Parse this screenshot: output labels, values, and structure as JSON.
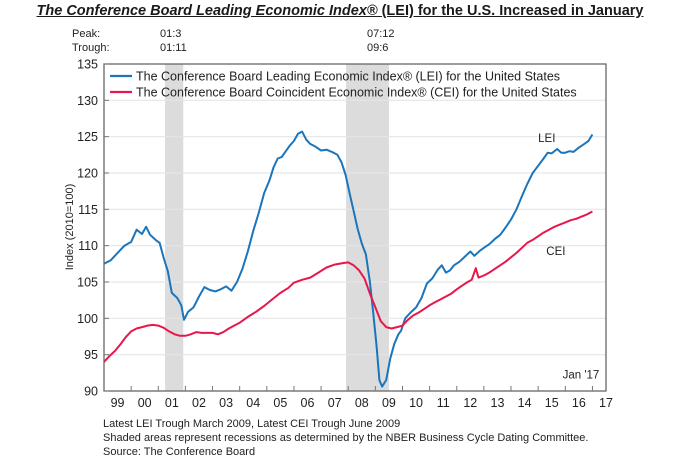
{
  "title_italic": "The Conference Board Leading Economic Index®",
  "title_rest": " (LEI) for the U.S. Increased in January",
  "turning_points": {
    "peak_label": "Peak:",
    "trough_label": "Trough:",
    "peaks": [
      "01:3",
      "07:12"
    ],
    "troughs": [
      "01:11",
      "09:6"
    ]
  },
  "footnotes": [
    "Latest LEI Trough March 2009, Latest CEI Trough June 2009",
    "Shaded areas represent recessions as determined by the NBER Business Cycle Dating Committee.",
    "Source: The Conference Board"
  ],
  "chart_data": {
    "type": "line",
    "title": "The Conference Board Leading Economic Index® (LEI) for the U.S. Increased in January",
    "xlabel": "",
    "ylabel": "Index (2010=100)",
    "xlim": [
      1999.0,
      2017.5
    ],
    "ylim": [
      90,
      135
    ],
    "yticks": [
      90,
      95,
      100,
      105,
      110,
      115,
      120,
      125,
      130,
      135
    ],
    "xtick_labels": [
      "99",
      "00",
      "01",
      "02",
      "03",
      "04",
      "05",
      "06",
      "07",
      "08",
      "09",
      "10",
      "11",
      "12",
      "13",
      "14",
      "15",
      "16",
      "17"
    ],
    "grid": true,
    "legend_position": "top-left",
    "recessions": [
      [
        2001.25,
        2001.92
      ],
      [
        2007.92,
        2009.5
      ]
    ],
    "annotations": [
      {
        "text": "LEI",
        "x": 2015.0,
        "y": 124.3
      },
      {
        "text": "CEI",
        "x": 2015.3,
        "y": 108.7
      },
      {
        "text": "Jan '17",
        "x": 2015.9,
        "y": 91.7
      }
    ],
    "series": [
      {
        "name": "The Conference Board Leading Economic Index® (LEI) for the United States",
        "short": "LEI",
        "color": "#1a75bc",
        "points": [
          [
            1999.0,
            107.5
          ],
          [
            1999.25,
            108.0
          ],
          [
            1999.5,
            109.0
          ],
          [
            1999.75,
            110.0
          ],
          [
            2000.0,
            110.5
          ],
          [
            2000.2,
            112.2
          ],
          [
            2000.4,
            111.6
          ],
          [
            2000.55,
            112.6
          ],
          [
            2000.7,
            111.5
          ],
          [
            2000.9,
            110.8
          ],
          [
            2001.05,
            110.4
          ],
          [
            2001.2,
            108.3
          ],
          [
            2001.35,
            106.5
          ],
          [
            2001.5,
            103.5
          ],
          [
            2001.7,
            102.8
          ],
          [
            2001.85,
            101.8
          ],
          [
            2001.95,
            99.8
          ],
          [
            2002.1,
            100.9
          ],
          [
            2002.3,
            101.5
          ],
          [
            2002.5,
            103.0
          ],
          [
            2002.7,
            104.3
          ],
          [
            2002.9,
            103.9
          ],
          [
            2003.1,
            103.7
          ],
          [
            2003.3,
            104.0
          ],
          [
            2003.5,
            104.4
          ],
          [
            2003.7,
            103.8
          ],
          [
            2003.9,
            105.0
          ],
          [
            2004.1,
            106.8
          ],
          [
            2004.3,
            109.2
          ],
          [
            2004.5,
            112.0
          ],
          [
            2004.7,
            114.5
          ],
          [
            2004.9,
            117.2
          ],
          [
            2005.1,
            119.0
          ],
          [
            2005.25,
            120.8
          ],
          [
            2005.4,
            122.0
          ],
          [
            2005.55,
            122.2
          ],
          [
            2005.7,
            123.0
          ],
          [
            2005.85,
            123.8
          ],
          [
            2006.0,
            124.4
          ],
          [
            2006.15,
            125.4
          ],
          [
            2006.3,
            125.7
          ],
          [
            2006.45,
            124.6
          ],
          [
            2006.6,
            124.0
          ],
          [
            2006.8,
            123.6
          ],
          [
            2007.0,
            123.1
          ],
          [
            2007.2,
            123.2
          ],
          [
            2007.4,
            122.9
          ],
          [
            2007.6,
            122.5
          ],
          [
            2007.75,
            121.5
          ],
          [
            2007.9,
            119.8
          ],
          [
            2008.05,
            117.2
          ],
          [
            2008.2,
            114.8
          ],
          [
            2008.35,
            112.3
          ],
          [
            2008.5,
            110.3
          ],
          [
            2008.65,
            108.8
          ],
          [
            2008.8,
            105.0
          ],
          [
            2008.92,
            100.8
          ],
          [
            2009.05,
            96.0
          ],
          [
            2009.15,
            91.5
          ],
          [
            2009.25,
            90.6
          ],
          [
            2009.4,
            91.5
          ],
          [
            2009.55,
            94.5
          ],
          [
            2009.7,
            96.5
          ],
          [
            2009.85,
            97.8
          ],
          [
            2009.95,
            98.3
          ],
          [
            2010.1,
            100.0
          ],
          [
            2010.3,
            100.8
          ],
          [
            2010.5,
            101.5
          ],
          [
            2010.7,
            102.8
          ],
          [
            2010.9,
            104.8
          ],
          [
            2011.1,
            105.5
          ],
          [
            2011.3,
            106.7
          ],
          [
            2011.45,
            107.3
          ],
          [
            2011.6,
            106.3
          ],
          [
            2011.75,
            106.6
          ],
          [
            2011.9,
            107.3
          ],
          [
            2012.1,
            107.8
          ],
          [
            2012.3,
            108.5
          ],
          [
            2012.5,
            109.2
          ],
          [
            2012.65,
            108.6
          ],
          [
            2012.85,
            109.3
          ],
          [
            2013.0,
            109.7
          ],
          [
            2013.2,
            110.2
          ],
          [
            2013.4,
            110.9
          ],
          [
            2013.6,
            111.5
          ],
          [
            2013.8,
            112.5
          ],
          [
            2014.0,
            113.6
          ],
          [
            2014.2,
            115.0
          ],
          [
            2014.4,
            116.8
          ],
          [
            2014.6,
            118.5
          ],
          [
            2014.8,
            120.0
          ],
          [
            2015.0,
            121.0
          ],
          [
            2015.2,
            122.0
          ],
          [
            2015.35,
            122.8
          ],
          [
            2015.5,
            122.7
          ],
          [
            2015.7,
            123.3
          ],
          [
            2015.85,
            122.8
          ],
          [
            2016.0,
            122.8
          ],
          [
            2016.15,
            123.0
          ],
          [
            2016.3,
            122.9
          ],
          [
            2016.5,
            123.5
          ],
          [
            2016.7,
            124.0
          ],
          [
            2016.85,
            124.4
          ],
          [
            2017.0,
            125.3
          ]
        ]
      },
      {
        "name": "The Conference Board Coincident Economic Index® (CEI) for the United States",
        "short": "CEI",
        "color": "#e8174a",
        "points": [
          [
            1999.0,
            94.0
          ],
          [
            1999.2,
            94.8
          ],
          [
            1999.4,
            95.5
          ],
          [
            1999.6,
            96.4
          ],
          [
            1999.8,
            97.4
          ],
          [
            2000.0,
            98.2
          ],
          [
            2000.2,
            98.6
          ],
          [
            2000.4,
            98.8
          ],
          [
            2000.6,
            99.0
          ],
          [
            2000.8,
            99.1
          ],
          [
            2001.0,
            99.0
          ],
          [
            2001.2,
            98.7
          ],
          [
            2001.4,
            98.2
          ],
          [
            2001.6,
            97.8
          ],
          [
            2001.8,
            97.6
          ],
          [
            2002.0,
            97.6
          ],
          [
            2002.2,
            97.8
          ],
          [
            2002.4,
            98.1
          ],
          [
            2002.6,
            98.0
          ],
          [
            2002.8,
            98.0
          ],
          [
            2003.0,
            98.0
          ],
          [
            2003.2,
            97.8
          ],
          [
            2003.4,
            98.1
          ],
          [
            2003.6,
            98.6
          ],
          [
            2003.8,
            99.0
          ],
          [
            2004.0,
            99.4
          ],
          [
            2004.3,
            100.2
          ],
          [
            2004.6,
            100.9
          ],
          [
            2004.9,
            101.7
          ],
          [
            2005.2,
            102.6
          ],
          [
            2005.5,
            103.5
          ],
          [
            2005.8,
            104.2
          ],
          [
            2006.0,
            104.9
          ],
          [
            2006.3,
            105.3
          ],
          [
            2006.6,
            105.6
          ],
          [
            2006.9,
            106.3
          ],
          [
            2007.2,
            107.0
          ],
          [
            2007.5,
            107.4
          ],
          [
            2007.8,
            107.6
          ],
          [
            2008.0,
            107.7
          ],
          [
            2008.2,
            107.3
          ],
          [
            2008.4,
            106.6
          ],
          [
            2008.6,
            105.5
          ],
          [
            2008.8,
            103.4
          ],
          [
            2009.0,
            101.5
          ],
          [
            2009.2,
            99.6
          ],
          [
            2009.4,
            98.8
          ],
          [
            2009.6,
            98.6
          ],
          [
            2009.8,
            98.8
          ],
          [
            2010.0,
            99.0
          ],
          [
            2010.2,
            99.8
          ],
          [
            2010.4,
            100.4
          ],
          [
            2010.6,
            100.8
          ],
          [
            2010.8,
            101.3
          ],
          [
            2011.0,
            101.8
          ],
          [
            2011.2,
            102.2
          ],
          [
            2011.4,
            102.6
          ],
          [
            2011.6,
            103.0
          ],
          [
            2011.8,
            103.4
          ],
          [
            2012.0,
            104.0
          ],
          [
            2012.2,
            104.5
          ],
          [
            2012.4,
            105.0
          ],
          [
            2012.55,
            105.3
          ],
          [
            2012.7,
            106.9
          ],
          [
            2012.8,
            105.6
          ],
          [
            2013.0,
            105.9
          ],
          [
            2013.2,
            106.3
          ],
          [
            2013.4,
            106.8
          ],
          [
            2013.6,
            107.3
          ],
          [
            2013.8,
            107.8
          ],
          [
            2014.0,
            108.4
          ],
          [
            2014.2,
            109.0
          ],
          [
            2014.4,
            109.7
          ],
          [
            2014.6,
            110.4
          ],
          [
            2014.8,
            110.8
          ],
          [
            2015.0,
            111.3
          ],
          [
            2015.2,
            111.8
          ],
          [
            2015.4,
            112.2
          ],
          [
            2015.6,
            112.6
          ],
          [
            2015.8,
            112.9
          ],
          [
            2016.0,
            113.2
          ],
          [
            2016.2,
            113.5
          ],
          [
            2016.4,
            113.7
          ],
          [
            2016.6,
            114.0
          ],
          [
            2016.8,
            114.3
          ],
          [
            2017.0,
            114.7
          ]
        ]
      }
    ]
  }
}
